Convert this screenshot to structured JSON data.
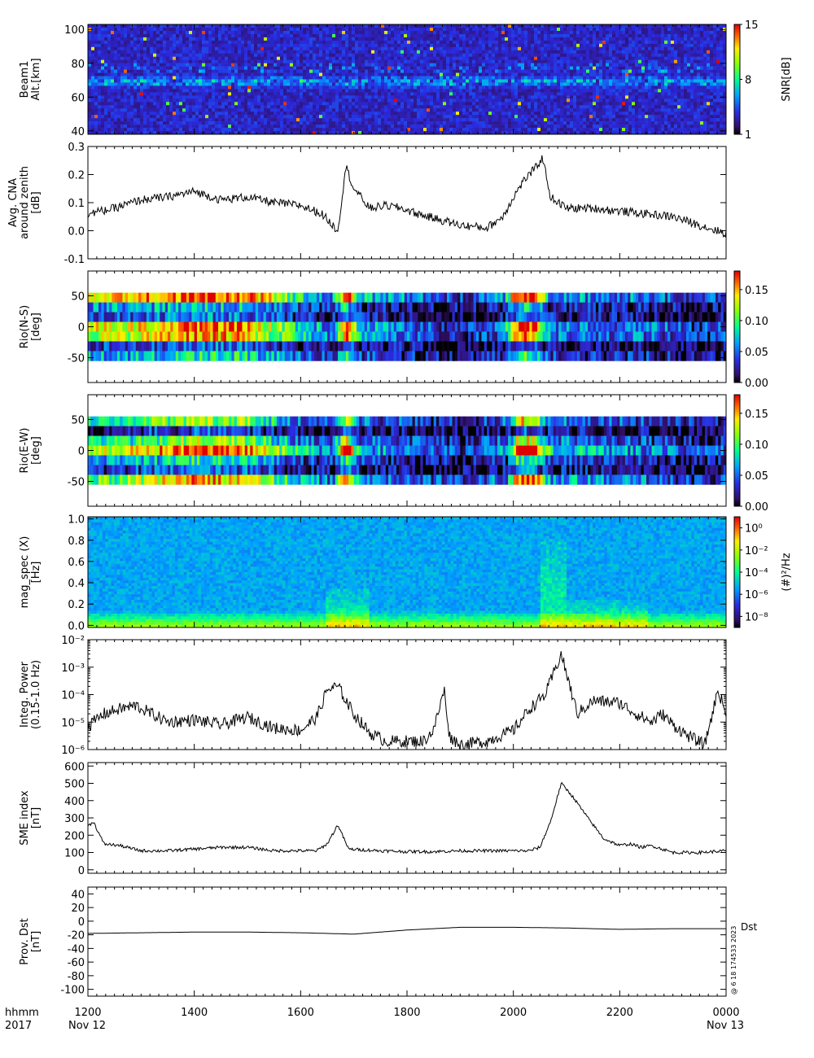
{
  "time_axis": {
    "tick_labels": [
      "1200",
      "1400",
      "1600",
      "1800",
      "2000",
      "2200",
      "0000"
    ],
    "tick_hours": [
      12,
      14,
      16,
      18,
      20,
      22,
      24
    ],
    "range_hours": [
      12,
      24
    ],
    "corner_label_top": "hhmm",
    "corner_label_bottom": "2017",
    "start_date": "Nov 12",
    "end_date": "Nov 13"
  },
  "side_stamp": "@ 6 18 174533 2023",
  "colors": {
    "line": "#000000",
    "axis": "#000000"
  },
  "chart_data": [
    {
      "type": "heatmap",
      "ylabel": [
        "Beam1",
        "Alt.[km]"
      ],
      "yticks": [
        40,
        60,
        80,
        100
      ],
      "ylim": [
        38,
        103
      ],
      "colorbar": {
        "title": "SNR[dB]",
        "ticks": [
          "1",
          "8",
          "15"
        ],
        "range": [
          1,
          15
        ],
        "scale": "linear"
      },
      "bands": [
        {
          "y": 69,
          "description": "persistent echo layer near 65-72 km"
        },
        {
          "y": 78,
          "description": "intermittent echoes near 78 km"
        }
      ]
    },
    {
      "type": "line",
      "ylabel": [
        "Avg. CNA",
        "around zenith",
        "[dB]"
      ],
      "yticks": [
        "-0.1",
        "0.0",
        "0.1",
        "0.2",
        "0.3"
      ],
      "ylim": [
        -0.1,
        0.3
      ],
      "x": [
        12.0,
        12.5,
        13.0,
        13.5,
        14.0,
        14.5,
        15.0,
        15.5,
        16.0,
        16.4,
        16.7,
        16.85,
        17.0,
        17.3,
        17.6,
        17.9,
        18.2,
        18.6,
        19.0,
        19.5,
        19.8,
        20.0,
        20.2,
        20.4,
        20.55,
        20.7,
        21.0,
        21.5,
        22.0,
        22.5,
        23.0,
        23.5,
        24.0
      ],
      "y": [
        0.06,
        0.08,
        0.11,
        0.12,
        0.14,
        0.11,
        0.12,
        0.1,
        0.09,
        0.06,
        0.0,
        0.23,
        0.15,
        0.08,
        0.09,
        0.08,
        0.06,
        0.04,
        0.02,
        0.01,
        0.05,
        0.12,
        0.18,
        0.22,
        0.26,
        0.12,
        0.08,
        0.08,
        0.07,
        0.06,
        0.05,
        0.02,
        -0.01
      ]
    },
    {
      "type": "heatmap",
      "ylabel": [
        "Rio(N-S)",
        "[deg]"
      ],
      "yticks": [
        "-50",
        "0",
        "50"
      ],
      "ylim": [
        -90,
        90
      ],
      "data_ylim": [
        -55,
        55
      ],
      "colorbar": {
        "ticks": [
          "0.00",
          "0.05",
          "0.10",
          "0.15"
        ],
        "range": [
          0,
          0.18
        ],
        "scale": "linear"
      },
      "column_profile_x": [
        12.0,
        13.0,
        14.0,
        15.0,
        16.0,
        16.6,
        16.85,
        17.1,
        18.0,
        19.0,
        19.8,
        20.1,
        20.4,
        20.7,
        21.5,
        22.5,
        23.5,
        24.0
      ],
      "column_profile_v": [
        0.12,
        0.13,
        0.16,
        0.15,
        0.08,
        0.05,
        0.18,
        0.07,
        0.05,
        0.03,
        0.05,
        0.17,
        0.16,
        0.06,
        0.05,
        0.05,
        0.03,
        0.04
      ]
    },
    {
      "type": "heatmap",
      "ylabel": [
        "Rio(E-W)",
        "[deg]"
      ],
      "yticks": [
        "-50",
        "0",
        "50"
      ],
      "ylim": [
        -90,
        90
      ],
      "data_ylim": [
        -55,
        55
      ],
      "colorbar": {
        "ticks": [
          "0.00",
          "0.05",
          "0.10",
          "0.15"
        ],
        "range": [
          0,
          0.18
        ],
        "scale": "linear"
      },
      "column_profile_x": [
        12.0,
        13.0,
        14.0,
        15.0,
        16.0,
        16.6,
        16.85,
        17.1,
        18.0,
        19.0,
        19.9,
        20.1,
        20.4,
        20.7,
        21.5,
        22.5,
        23.5,
        24.0
      ],
      "column_profile_v": [
        0.1,
        0.12,
        0.16,
        0.14,
        0.07,
        0.05,
        0.18,
        0.06,
        0.05,
        0.03,
        0.06,
        0.18,
        0.17,
        0.07,
        0.06,
        0.05,
        0.03,
        0.04
      ]
    },
    {
      "type": "heatmap",
      "ylabel": [
        "mag_spec (X)",
        "[Hz]"
      ],
      "yticks": [
        "0.0",
        "0.2",
        "0.4",
        "0.6",
        "0.8",
        "1.0"
      ],
      "ylim": [
        -0.02,
        1.02
      ],
      "colorbar": {
        "title": "(#)²/Hz",
        "ticks": [
          "10⁻⁸",
          "10⁻⁶",
          "10⁻⁴",
          "10⁻²",
          "10⁰"
        ],
        "log_range": [
          -9,
          1
        ],
        "scale": "log"
      },
      "enhancements": [
        {
          "x": [
            16.5,
            17.3
          ],
          "f_max": 0.35
        },
        {
          "x": [
            20.5,
            21.0
          ],
          "f_max": 0.8
        },
        {
          "x": [
            21.0,
            22.5
          ],
          "f_max": 0.25
        }
      ]
    },
    {
      "type": "line",
      "scale": "log",
      "ylabel": [
        "Integ. Power",
        "(0.15-1.0 Hz)"
      ],
      "yticks": [
        "10⁻⁶",
        "10⁻⁵",
        "10⁻⁴",
        "10⁻³",
        "10⁻²"
      ],
      "ylim_log": [
        -6,
        -2
      ],
      "x": [
        12.0,
        12.3,
        12.6,
        12.9,
        13.2,
        13.5,
        14.0,
        14.5,
        15.0,
        15.5,
        16.0,
        16.3,
        16.5,
        16.7,
        17.0,
        17.3,
        17.6,
        18.0,
        18.3,
        18.5,
        18.7,
        18.8,
        19.0,
        19.5,
        20.0,
        20.3,
        20.6,
        20.9,
        21.2,
        21.5,
        22.0,
        22.3,
        22.6,
        22.8,
        23.0,
        23.3,
        23.6,
        23.85,
        24.0
      ],
      "y": [
        7e-06,
        2e-05,
        3e-05,
        4e-05,
        2e-05,
        1e-05,
        1.2e-05,
        8e-06,
        1.5e-05,
        6e-06,
        5e-06,
        1.5e-05,
        0.00015,
        0.0002,
        2e-05,
        4e-06,
        2e-06,
        2e-06,
        2e-06,
        5e-06,
        0.00015,
        3e-06,
        1.5e-06,
        2e-06,
        5e-06,
        3e-05,
        0.0001,
        0.003,
        2e-05,
        6e-05,
        5e-05,
        2e-05,
        1e-05,
        2e-05,
        8e-06,
        3e-06,
        1.5e-06,
        0.00015,
        2e-05
      ]
    },
    {
      "type": "line",
      "ylabel": [
        "SME index",
        "[nT]"
      ],
      "yticks": [
        "0",
        "100",
        "200",
        "300",
        "400",
        "500",
        "600"
      ],
      "ylim": [
        -20,
        620
      ],
      "x": [
        12.0,
        12.1,
        12.3,
        12.6,
        13.0,
        13.5,
        14.0,
        14.5,
        15.0,
        15.5,
        16.0,
        16.3,
        16.5,
        16.7,
        16.9,
        17.5,
        18.0,
        18.5,
        19.0,
        19.5,
        20.0,
        20.3,
        20.5,
        20.7,
        20.9,
        21.1,
        21.4,
        21.7,
        22.0,
        22.2,
        22.4,
        22.6,
        22.8,
        23.0,
        23.5,
        24.0
      ],
      "y": [
        250,
        280,
        150,
        140,
        110,
        110,
        120,
        130,
        130,
        110,
        110,
        110,
        150,
        260,
        120,
        110,
        105,
        105,
        110,
        110,
        110,
        110,
        130,
        280,
        500,
        430,
        300,
        180,
        140,
        150,
        130,
        140,
        120,
        100,
        100,
        110
      ]
    },
    {
      "type": "line",
      "ylabel": [
        "Prov. Dst",
        "[nT]"
      ],
      "yticks": [
        "-100",
        "-80",
        "-60",
        "-40",
        "-20",
        "0",
        "20",
        "40"
      ],
      "ylim": [
        -110,
        50
      ],
      "series_label": "Dst",
      "x": [
        12,
        13,
        14,
        15,
        16,
        17,
        18,
        19,
        20,
        21,
        22,
        23,
        24
      ],
      "y": [
        -18,
        -17,
        -16,
        -16,
        -17,
        -19,
        -13,
        -9,
        -9,
        -10,
        -12,
        -11,
        -11
      ]
    }
  ]
}
